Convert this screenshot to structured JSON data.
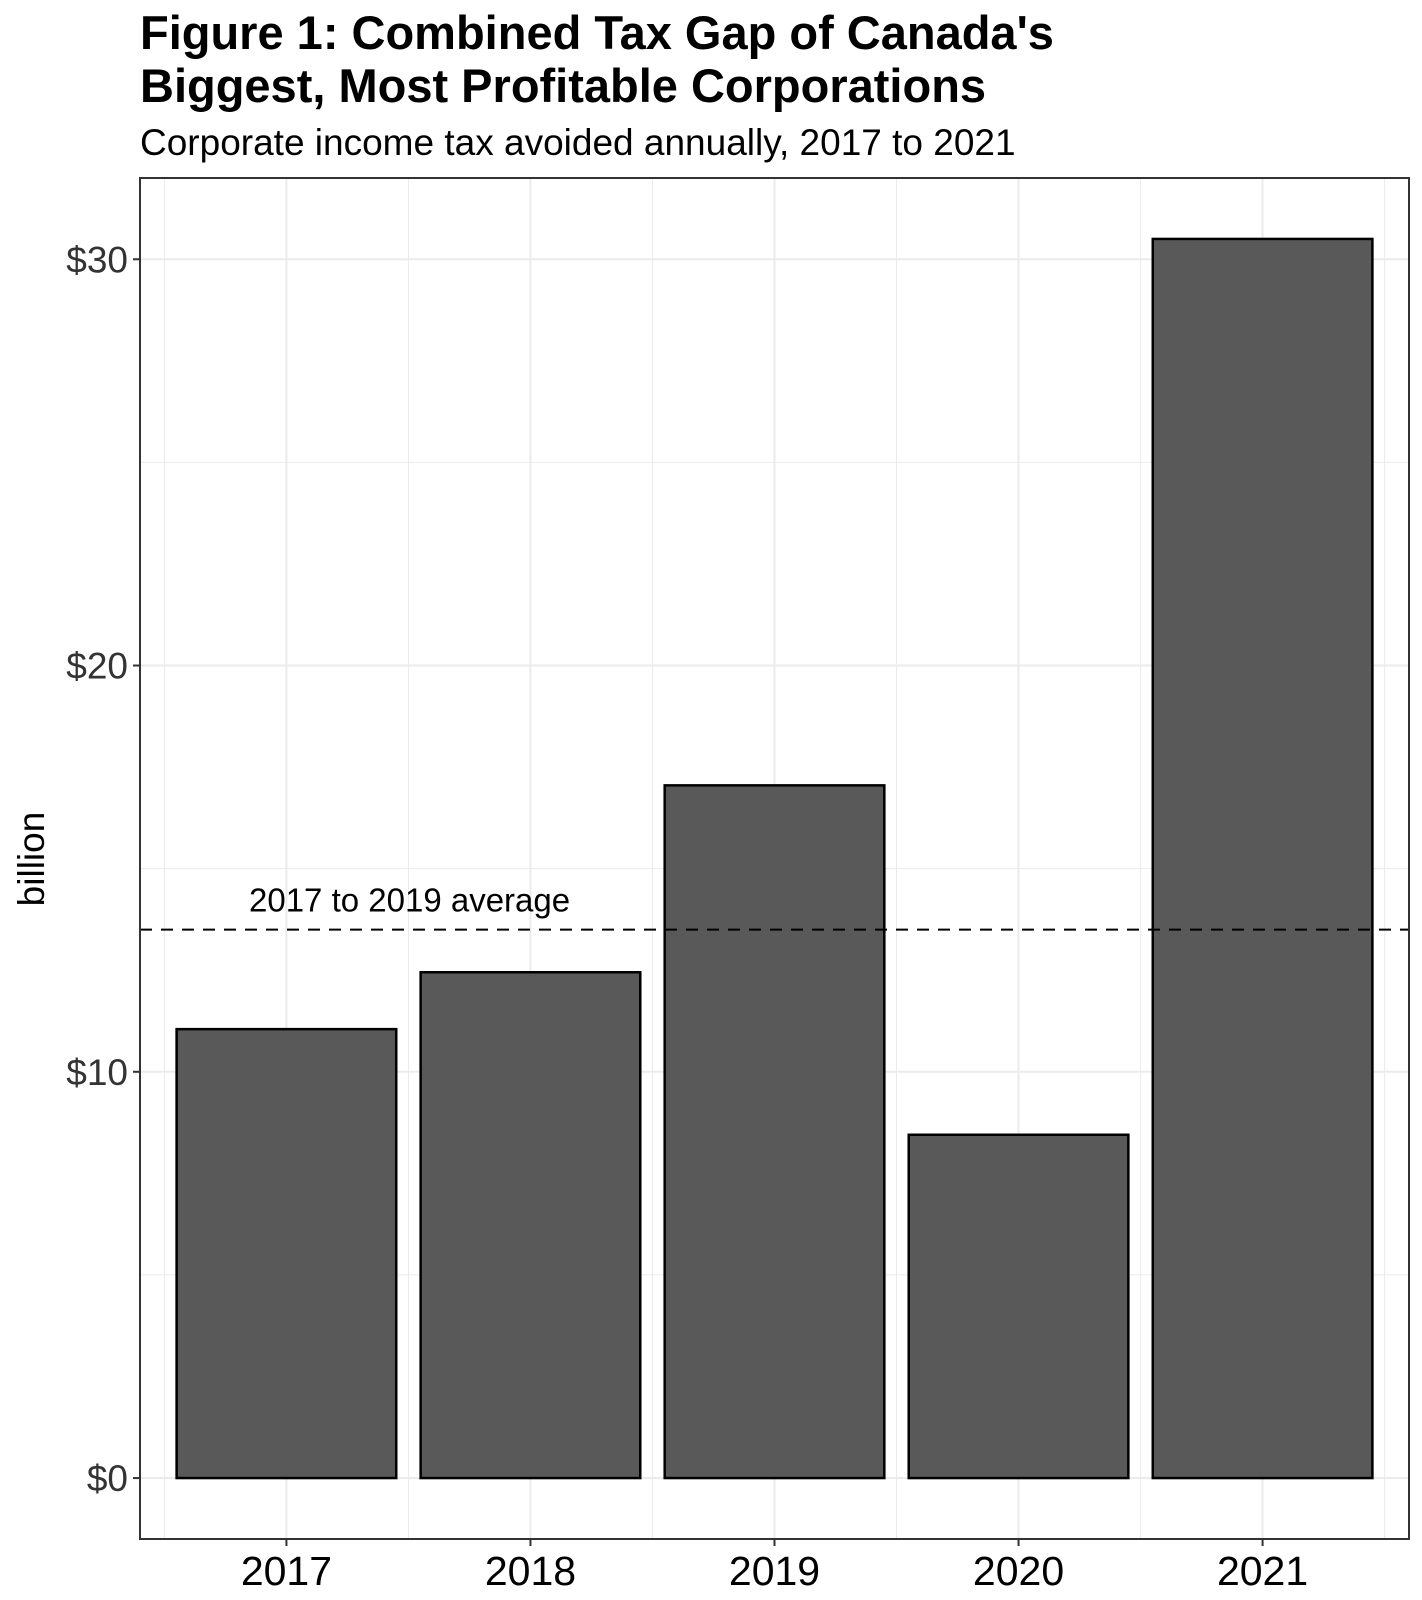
{
  "chart_data": {
    "type": "bar",
    "title_lines": [
      "Figure 1: Combined Tax Gap of Canada's",
      "Biggest, Most Profitable Corporations"
    ],
    "subtitle": "Corporate income tax avoided annually, 2017 to 2021",
    "xlabel": "",
    "ylabel": "billion",
    "categories": [
      "2017",
      "2018",
      "2019",
      "2020",
      "2021"
    ],
    "values": [
      11.05,
      12.45,
      17.05,
      8.45,
      30.5
    ],
    "ylim": [
      -1.5,
      32.0
    ],
    "y_ticks": [
      0,
      10,
      20,
      30
    ],
    "y_tick_labels": [
      "$0",
      "$10",
      "$20",
      "$30"
    ],
    "y_minor_ticks": [
      5,
      15,
      25
    ],
    "reference_line": {
      "value": 13.5,
      "label": "2017 to 2019 average",
      "style": "dashed"
    },
    "grid": true,
    "legend": "none",
    "colors": {
      "bar_fill": "#595959",
      "bar_stroke": "#000000",
      "grid": "#ebebeb",
      "panel_border": "#333333",
      "reference_line": "#000000"
    }
  }
}
